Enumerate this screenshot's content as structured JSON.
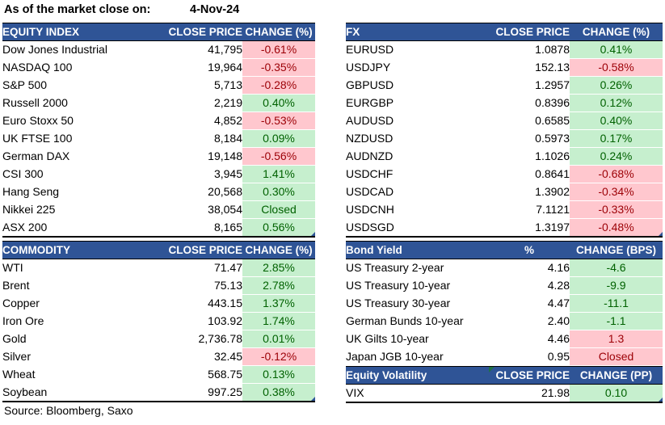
{
  "title": {
    "label": "As of the market close on:",
    "date": "4-Nov-24"
  },
  "source": "Source: Bloomberg, Saxo",
  "colors": {
    "header_bg": "#2F5496",
    "header_text": "#FFFFFF",
    "positive_bg": "#C6EFCE",
    "positive_text": "#006100",
    "negative_bg": "#FFC7CE",
    "negative_text": "#9C0006",
    "comment_marker": "#1E7145",
    "corner_marker": "#2E5496"
  },
  "tables": {
    "equity": {
      "headers": [
        "EQUITY INDEX",
        "CLOSE PRICE",
        "CHANGE (%)"
      ],
      "rows": [
        {
          "name": "Dow Jones Industrial",
          "price": "41,795",
          "change": "-0.61%",
          "dir": "neg"
        },
        {
          "name": "NASDAQ 100",
          "price": "19,964",
          "change": "-0.35%",
          "dir": "neg"
        },
        {
          "name": "S&P 500",
          "price": "5,713",
          "change": "-0.28%",
          "dir": "neg"
        },
        {
          "name": "Russell 2000",
          "price": "2,219",
          "change": "0.40%",
          "dir": "pos"
        },
        {
          "name": "Euro Stoxx 50",
          "price": "4,852",
          "change": "-0.53%",
          "dir": "neg"
        },
        {
          "name": "UK FTSE 100",
          "price": "8,184",
          "change": "0.09%",
          "dir": "pos"
        },
        {
          "name": "German DAX",
          "price": "19,148",
          "change": "-0.56%",
          "dir": "neg"
        },
        {
          "name": "CSI 300",
          "price": "3,945",
          "change": "1.41%",
          "dir": "pos"
        },
        {
          "name": "Hang Seng",
          "price": "20,568",
          "change": "0.30%",
          "dir": "pos"
        },
        {
          "name": "Nikkei 225",
          "price": "38,054",
          "change": "Closed",
          "dir": "pos"
        },
        {
          "name": "ASX 200",
          "price": "8,165",
          "change": "0.56%",
          "dir": "pos"
        }
      ]
    },
    "fx": {
      "headers": [
        "FX",
        "CLOSE PRICE",
        "CHANGE (%)"
      ],
      "rows": [
        {
          "name": "EURUSD",
          "price": "1.0878",
          "change": "0.41%",
          "dir": "pos"
        },
        {
          "name": "USDJPY",
          "price": "152.13",
          "change": "-0.58%",
          "dir": "neg"
        },
        {
          "name": "GBPUSD",
          "price": "1.2957",
          "change": "0.26%",
          "dir": "pos"
        },
        {
          "name": "EURGBP",
          "price": "0.8396",
          "change": "0.12%",
          "dir": "pos"
        },
        {
          "name": "AUDUSD",
          "price": "0.6585",
          "change": "0.40%",
          "dir": "pos"
        },
        {
          "name": "NZDUSD",
          "price": "0.5973",
          "change": "0.17%",
          "dir": "pos"
        },
        {
          "name": "AUDNZD",
          "price": "1.1026",
          "change": "0.24%",
          "dir": "pos"
        },
        {
          "name": "USDCHF",
          "price": "0.8641",
          "change": "-0.68%",
          "dir": "neg"
        },
        {
          "name": "USDCAD",
          "price": "1.3902",
          "change": "-0.34%",
          "dir": "neg"
        },
        {
          "name": "USDCNH",
          "price": "7.1121",
          "change": "-0.33%",
          "dir": "neg"
        },
        {
          "name": "USDSGD",
          "price": "1.3197",
          "change": "-0.48%",
          "dir": "neg"
        }
      ]
    },
    "commodity": {
      "headers": [
        "COMMODITY",
        "CLOSE PRICE",
        "CHANGE (%)"
      ],
      "rows": [
        {
          "name": "WTI",
          "price": "71.47",
          "change": "2.85%",
          "dir": "pos"
        },
        {
          "name": "Brent",
          "price": "75.13",
          "change": "2.78%",
          "dir": "pos"
        },
        {
          "name": "Copper",
          "price": "443.15",
          "change": "1.37%",
          "dir": "pos"
        },
        {
          "name": "Iron Ore",
          "price": "103.92",
          "change": "1.74%",
          "dir": "pos"
        },
        {
          "name": "Gold",
          "price": "2,736.78",
          "change": "0.01%",
          "dir": "pos"
        },
        {
          "name": "Silver",
          "price": "32.45",
          "change": "-0.12%",
          "dir": "neg"
        },
        {
          "name": "Wheat",
          "price": "568.75",
          "change": "0.13%",
          "dir": "pos"
        },
        {
          "name": "Soybean",
          "price": "997.25",
          "change": "0.38%",
          "dir": "pos"
        }
      ]
    },
    "bond": {
      "headers": [
        "Bond Yield",
        "%",
        "CHANGE (BPS)"
      ],
      "rows": [
        {
          "name": "US Treasury 2-year",
          "price": "4.16",
          "change": "-4.6",
          "dir": "pos"
        },
        {
          "name": "US Treasury 10-year",
          "price": "4.28",
          "change": "-9.9",
          "dir": "pos"
        },
        {
          "name": "US Treasury 30-year",
          "price": "4.47",
          "change": "-11.1",
          "dir": "pos"
        },
        {
          "name": "German Bunds 10-year",
          "price": "2.40",
          "change": "-1.1",
          "dir": "pos"
        },
        {
          "name": "UK Gilts 10-year",
          "price": "4.46",
          "change": "1.3",
          "dir": "neg"
        },
        {
          "name": "Japan JGB 10-year",
          "price": "0.95",
          "change": "Closed",
          "dir": "neg"
        }
      ]
    },
    "volatility": {
      "headers": [
        "Equity Volatility",
        "CLOSE PRICE",
        "CHANGE (PP)"
      ],
      "rows": [
        {
          "name": "VIX",
          "price": "21.98",
          "change": "0.10",
          "dir": "pos"
        }
      ]
    }
  }
}
